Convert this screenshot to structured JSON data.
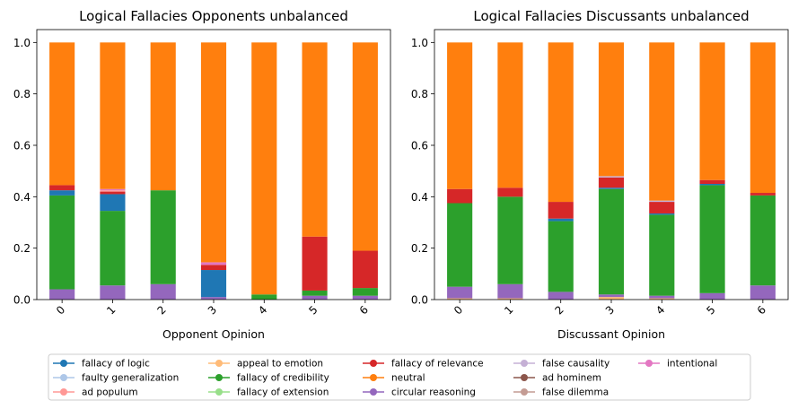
{
  "colors": {
    "fallacy of logic": "#1f77b4",
    "faulty generalization": "#aec7e8",
    "ad populum": "#ff9896",
    "appeal to emotion": "#ffbb78",
    "fallacy of credibility": "#2ca02c",
    "fallacy of extension": "#98df8a",
    "fallacy of relevance": "#d62728",
    "neutral": "#ff7f0e",
    "circular reasoning": "#9467bd",
    "false causality": "#c5b0d5",
    "ad hominem": "#8c564b",
    "false dilemma": "#c49c94",
    "intentional": "#e377c2"
  },
  "legend": {
    "placement": "bottom-center",
    "entries": [
      "fallacy of logic",
      "faulty generalization",
      "ad populum",
      "appeal to emotion",
      "fallacy of credibility",
      "fallacy of extension",
      "fallacy of relevance",
      "neutral",
      "circular reasoning",
      "false causality",
      "ad hominem",
      "false dilemma",
      "intentional"
    ]
  },
  "chart_data": [
    {
      "type": "bar",
      "stacked": true,
      "title": "Logical Fallacies Opponents unbalanced",
      "xlabel": "Opponent Opinion",
      "ylabel": "",
      "ylim": [
        0,
        1.05
      ],
      "yticks": [
        0.0,
        0.2,
        0.4,
        0.6,
        0.8,
        1.0
      ],
      "ytick_labels": [
        "0.0",
        "0.2",
        "0.4",
        "0.6",
        "0.8",
        "1.0"
      ],
      "categories": [
        "0",
        "1",
        "2",
        "3",
        "4",
        "5",
        "6"
      ],
      "series": [
        {
          "name": "circular reasoning",
          "values": [
            0.04,
            0.055,
            0.06,
            0.01,
            0.0,
            0.015,
            0.015
          ]
        },
        {
          "name": "fallacy of credibility",
          "values": [
            0.365,
            0.29,
            0.365,
            0.0,
            0.02,
            0.02,
            0.03
          ]
        },
        {
          "name": "fallacy of logic",
          "values": [
            0.02,
            0.065,
            0.0,
            0.105,
            0.0,
            0.0,
            0.0
          ]
        },
        {
          "name": "fallacy of relevance",
          "values": [
            0.02,
            0.01,
            0.0,
            0.02,
            0.0,
            0.21,
            0.145
          ]
        },
        {
          "name": "ad populum",
          "values": [
            0.0,
            0.005,
            0.0,
            0.0,
            0.0,
            0.0,
            0.0
          ]
        },
        {
          "name": "intentional",
          "values": [
            0.0,
            0.005,
            0.0,
            0.01,
            0.0,
            0.0,
            0.0
          ]
        },
        {
          "name": "neutral",
          "values": [
            0.555,
            0.57,
            0.575,
            0.855,
            0.98,
            0.755,
            0.81
          ]
        }
      ]
    },
    {
      "type": "bar",
      "stacked": true,
      "title": "Logical Fallacies Discussants unbalanced",
      "xlabel": "Discussant Opinion",
      "ylabel": "",
      "ylim": [
        0,
        1.05
      ],
      "yticks": [
        0.0,
        0.2,
        0.4,
        0.6,
        0.8,
        1.0
      ],
      "ytick_labels": [
        "0.0",
        "0.2",
        "0.4",
        "0.6",
        "0.8",
        "1.0"
      ],
      "categories": [
        "0",
        "1",
        "2",
        "3",
        "4",
        "5",
        "6"
      ],
      "series": [
        {
          "name": "appeal to emotion",
          "values": [
            0.005,
            0.005,
            0.0,
            0.01,
            0.005,
            0.0,
            0.0
          ]
        },
        {
          "name": "circular reasoning",
          "values": [
            0.045,
            0.055,
            0.03,
            0.01,
            0.01,
            0.025,
            0.055
          ]
        },
        {
          "name": "fallacy of credibility",
          "values": [
            0.325,
            0.34,
            0.275,
            0.41,
            0.315,
            0.42,
            0.35
          ]
        },
        {
          "name": "fallacy of logic",
          "values": [
            0.0,
            0.0,
            0.01,
            0.005,
            0.005,
            0.005,
            0.0
          ]
        },
        {
          "name": "fallacy of relevance",
          "values": [
            0.055,
            0.035,
            0.065,
            0.04,
            0.045,
            0.015,
            0.01
          ]
        },
        {
          "name": "false causality",
          "values": [
            0.0,
            0.0,
            0.0,
            0.005,
            0.005,
            0.0,
            0.0
          ]
        },
        {
          "name": "neutral",
          "values": [
            0.57,
            0.565,
            0.62,
            0.52,
            0.615,
            0.535,
            0.585
          ]
        }
      ]
    }
  ]
}
